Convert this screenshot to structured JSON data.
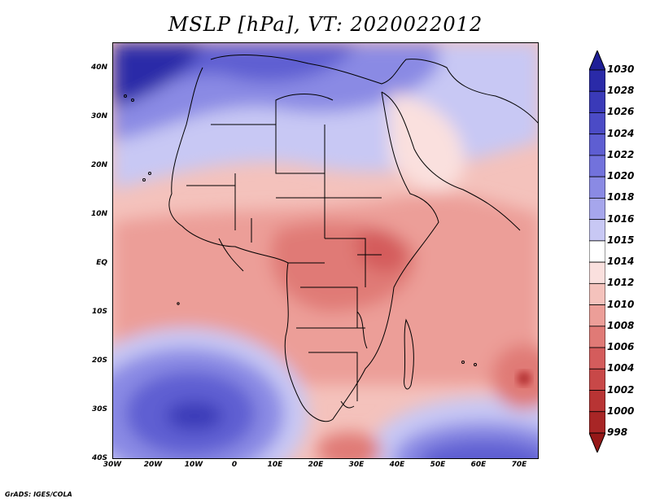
{
  "title": "MSLP [hPa], VT: 2020022012",
  "credit": "GrADS: IGES/COLA",
  "lat_labels": [
    "40N",
    "30N",
    "20N",
    "10N",
    "EQ",
    "10S",
    "20S",
    "30S",
    "40S"
  ],
  "lon_labels": [
    "30W",
    "20W",
    "10W",
    "0",
    "10E",
    "20E",
    "30E",
    "40E",
    "50E",
    "60E",
    "70E"
  ],
  "colorbar": {
    "levels": [
      "1030",
      "1028",
      "1026",
      "1024",
      "1022",
      "1020",
      "1018",
      "1016",
      "1015",
      "1014",
      "1012",
      "1010",
      "1008",
      "1006",
      "1004",
      "1002",
      "1000",
      "998"
    ],
    "colors": [
      "#1e1e96",
      "#2a2aa8",
      "#3a3ab8",
      "#4b4bc6",
      "#5e5ed2",
      "#7272dc",
      "#8a8ae4",
      "#a6a6ec",
      "#c8c8f4",
      "#ffffff",
      "#fae0de",
      "#f4c2bc",
      "#ec9e98",
      "#e07a76",
      "#d45c5c",
      "#c84848",
      "#b83434",
      "#a82626",
      "#961818"
    ]
  },
  "colors": {
    "water_blue": "#a6a6ec",
    "land_pink": "#ec9e98",
    "boundary": "#000000"
  }
}
